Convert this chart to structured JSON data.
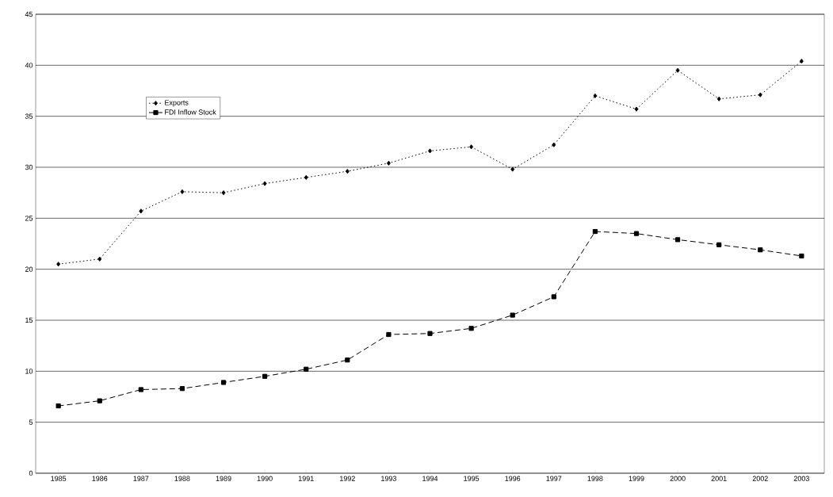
{
  "chart_data": {
    "type": "line",
    "categories": [
      "1985",
      "1986",
      "1987",
      "1988",
      "1989",
      "1990",
      "1991",
      "1992",
      "1993",
      "1994",
      "1995",
      "1996",
      "1997",
      "1998",
      "1999",
      "2000",
      "2001",
      "2002",
      "2003"
    ],
    "series": [
      {
        "name": "Exports",
        "color": "#000000",
        "marker": "diamond",
        "line_style": "dotted",
        "values": [
          20.5,
          21.0,
          25.7,
          27.6,
          27.5,
          28.4,
          29.0,
          29.6,
          30.4,
          31.6,
          32.0,
          29.8,
          32.2,
          37.0,
          35.7,
          39.5,
          36.7,
          37.1,
          40.4
        ]
      },
      {
        "name": "FDI Inflow Stock",
        "color": "#000000",
        "marker": "square",
        "line_style": "dashed",
        "values": [
          6.6,
          7.1,
          8.2,
          8.3,
          8.9,
          9.5,
          10.2,
          11.1,
          13.6,
          13.7,
          14.2,
          15.5,
          17.3,
          23.7,
          23.5,
          22.9,
          22.4,
          21.9,
          21.3
        ]
      }
    ],
    "ylim": [
      0,
      45
    ],
    "yticks": [
      0,
      5,
      10,
      15,
      20,
      25,
      30,
      35,
      40,
      45
    ],
    "grid": "y",
    "legend": "top left"
  }
}
